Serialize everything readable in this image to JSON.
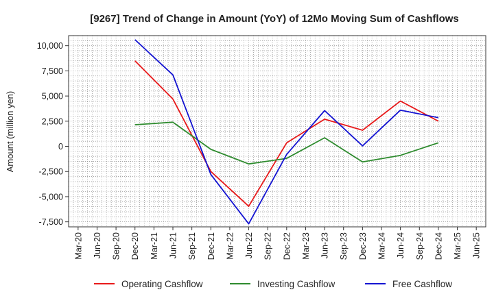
{
  "chart_data": {
    "type": "line",
    "title": "[9267]  Trend of Change in Amount (YoY) of 12Mo Moving Sum of Cashflows",
    "xlabel": "",
    "ylabel": "Amount (million yen)",
    "categories": [
      "Mar-20",
      "Jun-20",
      "Sep-20",
      "Dec-20",
      "Mar-21",
      "Jun-21",
      "Sep-21",
      "Dec-21",
      "Mar-22",
      "Jun-22",
      "Sep-22",
      "Dec-22",
      "Mar-23",
      "Jun-23",
      "Sep-23",
      "Dec-23",
      "Mar-24",
      "Jun-24",
      "Sep-24",
      "Dec-24",
      "Mar-25",
      "Jun-25"
    ],
    "y_ticks": [
      10000,
      7500,
      5000,
      2500,
      0,
      -2500,
      -5000,
      -7500
    ],
    "y_tick_labels": [
      "10,000",
      "7,500",
      "5,000",
      "2,500",
      "0",
      "-2,500",
      "-5,000",
      "-7,500"
    ],
    "ylim": [
      -8000,
      11000
    ],
    "grid": true,
    "legend_position": "bottom",
    "series": [
      {
        "name": "Operating Cashflow",
        "color": "#e8191a",
        "values": [
          null,
          null,
          null,
          8500,
          null,
          4700,
          null,
          -2500,
          null,
          -5950,
          null,
          350,
          null,
          2700,
          null,
          1600,
          null,
          4500,
          null,
          2500,
          null,
          null
        ]
      },
      {
        "name": "Investing Cashflow",
        "color": "#2e8b2e",
        "values": [
          null,
          null,
          null,
          2150,
          null,
          2400,
          null,
          -300,
          null,
          -1750,
          null,
          -1200,
          null,
          850,
          null,
          -1550,
          null,
          -900,
          null,
          350,
          null,
          null
        ]
      },
      {
        "name": "Free Cashflow",
        "color": "#1414d2",
        "values": [
          null,
          null,
          null,
          10600,
          null,
          7100,
          null,
          -2800,
          null,
          -7700,
          null,
          -800,
          null,
          3550,
          null,
          50,
          null,
          3600,
          null,
          2850,
          null,
          null
        ]
      }
    ]
  }
}
